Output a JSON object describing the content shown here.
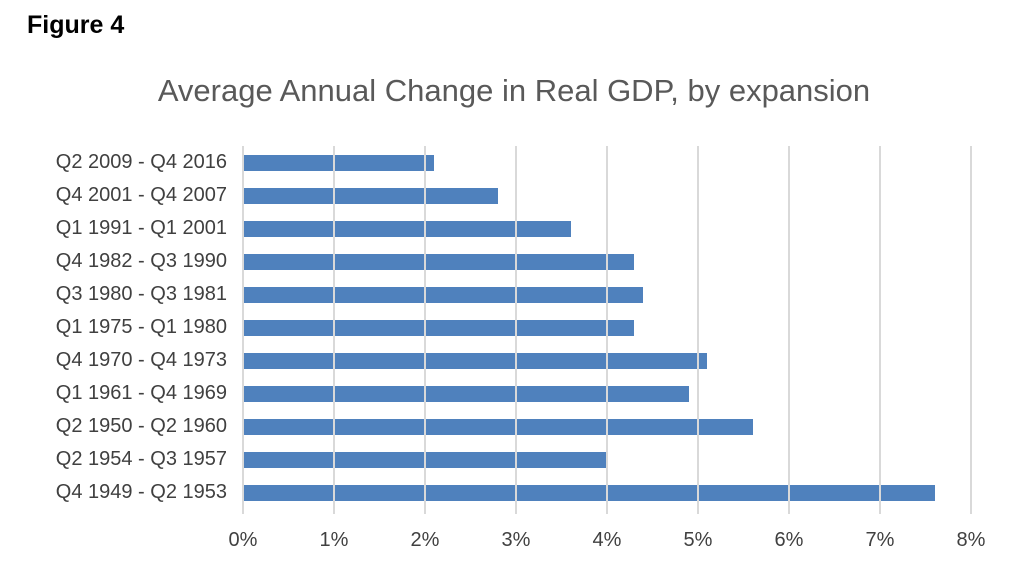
{
  "figure_label": "Figure 4",
  "chart_data": {
    "type": "bar",
    "orientation": "horizontal",
    "title": "Average Annual Change in Real GDP, by expansion",
    "categories": [
      "Q2 2009 - Q4 2016",
      "Q4 2001 - Q4 2007",
      "Q1 1991 - Q1 2001",
      "Q4 1982 - Q3 1990",
      "Q3 1980 - Q3 1981",
      "Q1 1975 - Q1 1980",
      "Q4 1970 - Q4 1973",
      "Q1 1961 - Q4 1969",
      "Q2 1950 - Q2 1960",
      "Q2 1954 - Q3 1957",
      "Q4 1949 - Q2 1953"
    ],
    "values": [
      2.1,
      2.8,
      3.6,
      4.3,
      4.4,
      4.3,
      5.1,
      4.9,
      5.6,
      4.0,
      7.6
    ],
    "value_unit": "%",
    "x_tick_labels": [
      "0%",
      "1%",
      "2%",
      "3%",
      "4%",
      "5%",
      "6%",
      "7%",
      "8%"
    ],
    "xlim": [
      0,
      8
    ],
    "xlabel": "",
    "ylabel": "",
    "gridlines": "vertical",
    "legend": "none",
    "colors": {
      "bar": "#4f81bd",
      "gridline": "#d9d9d9",
      "title_text": "#595959",
      "axis_text": "#404040",
      "figure_label_text": "#000000",
      "background": "#ffffff"
    }
  }
}
